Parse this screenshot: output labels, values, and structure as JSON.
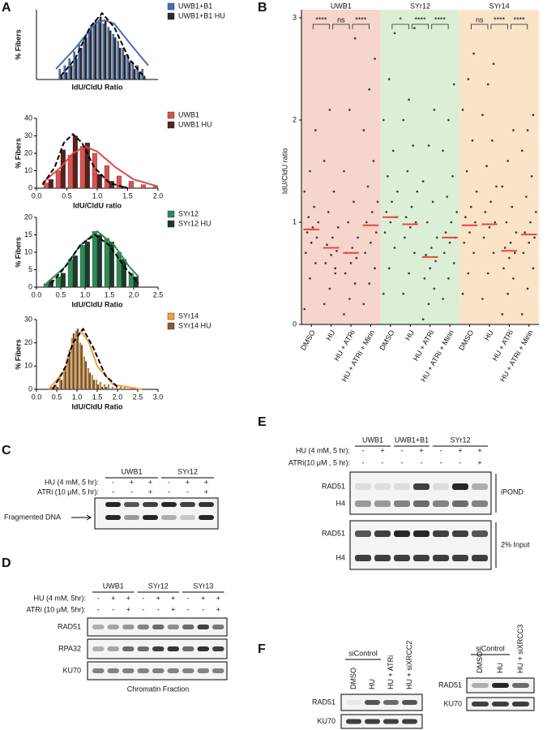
{
  "panel_labels": [
    "A",
    "B",
    "C",
    "D",
    "E",
    "F"
  ],
  "chart_data": [
    {
      "type": "bar",
      "xlabel": "IdU/CldU Ratio",
      "ylabel": "% Fibers",
      "xlim": [
        0,
        2.5
      ],
      "ylim": [
        0,
        20
      ],
      "x": [
        0.5,
        0.6,
        0.7,
        0.8,
        0.9,
        1.0,
        1.1,
        1.2,
        1.3,
        1.4,
        1.5,
        1.6,
        1.7,
        1.8,
        1.9,
        2.0,
        2.1,
        2.2
      ],
      "series": [
        {
          "name": "UWB1+B1",
          "color": "#4a6fb5",
          "values": [
            3,
            4,
            6,
            8,
            10,
            12,
            14,
            16,
            17,
            16,
            15,
            13,
            11,
            9,
            7,
            5,
            4,
            3
          ]
        },
        {
          "name": "UWB1+B1 HU",
          "color": "#2a2a2a",
          "values": [
            1,
            2,
            4,
            6,
            9,
            12,
            15,
            17,
            18,
            17,
            14,
            12,
            9,
            7,
            5,
            3,
            2,
            1
          ]
        }
      ],
      "fits": [
        {
          "color": "#4a6fb5",
          "dash": false,
          "x": [
            0.4,
            0.8,
            1.2,
            1.4,
            1.6,
            2.0,
            2.3
          ],
          "values": [
            3,
            9,
            16,
            17,
            16,
            9,
            4
          ]
        },
        {
          "color": "#000000",
          "dash": true,
          "x": [
            0.5,
            0.8,
            1.1,
            1.35,
            1.6,
            1.9,
            2.2
          ],
          "values": [
            1,
            6,
            15,
            19,
            15,
            6,
            1
          ]
        }
      ]
    },
    {
      "type": "bar",
      "xlabel": "IdU/CldU ratio",
      "ylabel": "% Fibers",
      "xlim": [
        0,
        2
      ],
      "ylim": [
        0,
        40
      ],
      "yticks": [
        0,
        10,
        20,
        30,
        40
      ],
      "xticks": [
        {
          "value": 0,
          "label": "0.0"
        },
        0.5,
        {
          "value": 1,
          "label": "1.0"
        },
        1.5,
        {
          "value": 2,
          "label": "2.0"
        }
      ],
      "x": [
        0.2,
        0.4,
        0.6,
        0.8,
        1.0,
        1.2,
        1.4,
        1.6,
        1.8,
        2.0
      ],
      "series": [
        {
          "name": "UWB1",
          "color": "#d9534f",
          "values": [
            3,
            10,
            19,
            24,
            20,
            13,
            7,
            4,
            2,
            1
          ]
        },
        {
          "name": "UWB1 HU",
          "color": "#5a1f1f",
          "values": [
            5,
            22,
            30,
            26,
            8,
            4,
            1,
            0,
            0,
            0
          ]
        }
      ],
      "fits": [
        {
          "color": "#e04a45",
          "dash": false,
          "x": [
            0.1,
            0.4,
            0.6,
            0.8,
            1.0,
            1.3,
            1.6,
            2.0
          ],
          "values": [
            3,
            12,
            20,
            24,
            21,
            12,
            5,
            1
          ]
        },
        {
          "color": "#000000",
          "dash": true,
          "x": [
            0.1,
            0.3,
            0.45,
            0.6,
            0.75,
            0.95,
            1.2,
            1.5
          ],
          "values": [
            2,
            12,
            26,
            31,
            26,
            12,
            3,
            0
          ]
        }
      ]
    },
    {
      "type": "bar",
      "xlabel": "IdU/CldU Ratio",
      "ylabel": "% Fibers",
      "xlim": [
        0,
        2.5
      ],
      "ylim": [
        0,
        20
      ],
      "yticks": [
        0,
        5,
        10,
        15,
        20
      ],
      "xticks": [
        {
          "value": 0,
          "label": "0.0"
        },
        0.5,
        {
          "value": 1,
          "label": "1.0"
        },
        1.5,
        {
          "value": 2,
          "label": "2.0"
        },
        2.5
      ],
      "x": [
        0.25,
        0.5,
        0.75,
        1.0,
        1.25,
        1.5,
        1.75,
        2.0
      ],
      "series": [
        {
          "name": "SYr12",
          "color": "#2e8b57",
          "values": [
            1,
            3,
            8,
            12,
            16,
            14,
            10,
            4
          ]
        },
        {
          "name": "SYr12 HU",
          "color": "#1a3d2a",
          "values": [
            2,
            4,
            9,
            13,
            15,
            13,
            8,
            3
          ]
        }
      ],
      "fits": [
        {
          "color": "#2e8b57",
          "dash": false,
          "x": [
            0.2,
            0.6,
            0.9,
            1.25,
            1.6,
            1.9,
            2.1
          ],
          "values": [
            1,
            6,
            12,
            16,
            12,
            6,
            3
          ]
        },
        {
          "color": "#000000",
          "dash": true,
          "x": [
            0.3,
            0.6,
            0.9,
            1.2,
            1.5,
            1.8,
            2.1
          ],
          "values": [
            1,
            6,
            12,
            15,
            12,
            6,
            1
          ]
        }
      ]
    },
    {
      "type": "bar",
      "xlabel": "IdU/CldU Ratio",
      "ylabel": "% Fibers",
      "xlim": [
        0,
        3
      ],
      "ylim": [
        0,
        30
      ],
      "yticks": [
        0,
        10,
        20,
        30
      ],
      "xticks": [
        {
          "value": 0,
          "label": "0.0"
        },
        0.5,
        {
          "value": 1,
          "label": "1.0"
        },
        1.5,
        {
          "value": 2,
          "label": "2.0"
        },
        2.5,
        {
          "value": 3,
          "label": "3.0"
        }
      ],
      "x": [
        0.4,
        0.5,
        0.6,
        0.7,
        0.8,
        0.9,
        1.0,
        1.1,
        1.2,
        1.3,
        1.4,
        1.5,
        1.6,
        1.7,
        1.8,
        1.9,
        2.0,
        2.1,
        2.2
      ],
      "series": [
        {
          "name": "SYr14",
          "color": "#f0a13a",
          "values": [
            1,
            2,
            5,
            9,
            15,
            22,
            25,
            20,
            14,
            9,
            6,
            4,
            3,
            2,
            2,
            1,
            1,
            1,
            1
          ]
        },
        {
          "name": "SYr14 HU",
          "color": "#8a5a2b",
          "values": [
            0,
            1,
            4,
            10,
            17,
            24,
            26,
            19,
            12,
            7,
            4,
            2,
            1,
            1,
            0,
            0,
            0,
            0,
            0
          ]
        }
      ],
      "fits": [
        {
          "color": "#f0a13a",
          "dash": false,
          "x": [
            0.3,
            0.7,
            0.9,
            1.1,
            1.3,
            1.5,
            1.9,
            2.6
          ],
          "values": [
            0,
            8,
            20,
            25,
            20,
            10,
            2,
            0
          ]
        },
        {
          "color": "#000000",
          "dash": true,
          "x": [
            0.4,
            0.7,
            0.9,
            1.15,
            1.4,
            1.7,
            2.0
          ],
          "values": [
            0,
            9,
            20,
            26,
            18,
            6,
            1
          ]
        }
      ]
    },
    {
      "type": "dot",
      "ylabel": "IdU/CldU ratio",
      "ylim": [
        0,
        3
      ],
      "yticks": [
        0,
        1,
        2,
        3
      ],
      "categories": [
        "DMSO",
        "HU",
        "HU + ATRi",
        "HU + ATRi + Mirin",
        "DMSO",
        "HU",
        "HU + ATRi",
        "HU + ATRi + Mirin",
        "DMSO",
        "HU",
        "HU + ATRi",
        "HU + ATRi + Mirin"
      ],
      "groups": [
        {
          "name": "UWB1",
          "color": "#f5d5cc"
        },
        {
          "name": "SYr12",
          "color": "#dcefd6"
        },
        {
          "name": "SYr14",
          "color": "#fbe3c8"
        }
      ],
      "significance": [
        "****",
        "ns",
        "****",
        "*",
        "****",
        "****",
        "ns",
        "****",
        "****"
      ],
      "point_color": "#333333",
      "median_color": "#e8463a",
      "medians": [
        0.93,
        0.75,
        0.7,
        0.97,
        1.05,
        0.98,
        0.66,
        0.85,
        0.97,
        0.98,
        0.72,
        0.88
      ],
      "points": [
        [
          0.15,
          0.45,
          0.6,
          0.7,
          0.8,
          0.85,
          0.9,
          0.95,
          1.0,
          1.05,
          1.15,
          1.3,
          1.5,
          1.9
        ],
        [
          0.2,
          0.35,
          0.5,
          0.6,
          0.68,
          0.72,
          0.78,
          0.85,
          0.95,
          1.1,
          1.3,
          1.6,
          2.1,
          0.55
        ],
        [
          0.1,
          0.25,
          0.4,
          0.5,
          0.6,
          0.65,
          0.7,
          0.75,
          0.85,
          1.0,
          1.2,
          1.5,
          2.1,
          2.8
        ],
        [
          0.2,
          0.4,
          0.55,
          0.7,
          0.8,
          0.9,
          1.0,
          1.1,
          1.2,
          1.35,
          1.6,
          1.9,
          2.3,
          2.6
        ],
        [
          0.3,
          0.55,
          0.75,
          0.9,
          1.0,
          1.05,
          1.1,
          1.2,
          1.3,
          1.45,
          1.7,
          2.0,
          2.4,
          2.85
        ],
        [
          0.3,
          0.5,
          0.7,
          0.85,
          0.95,
          1.0,
          1.05,
          1.15,
          1.3,
          1.5,
          1.75,
          2.0,
          2.2,
          2.9
        ],
        [
          0.05,
          0.2,
          0.35,
          0.45,
          0.55,
          0.62,
          0.68,
          0.75,
          0.85,
          1.0,
          1.2,
          1.4,
          1.75,
          2.1
        ],
        [
          0.25,
          0.45,
          0.6,
          0.7,
          0.8,
          0.85,
          0.9,
          1.0,
          1.1,
          1.25,
          1.45,
          1.7,
          2.0,
          2.35
        ],
        [
          0.3,
          0.5,
          0.7,
          0.8,
          0.9,
          1.0,
          1.05,
          1.15,
          1.3,
          1.5,
          1.8,
          2.1,
          2.4,
          2.65
        ],
        [
          0.25,
          0.5,
          0.7,
          0.85,
          0.95,
          1.0,
          1.1,
          1.2,
          1.35,
          1.55,
          1.8,
          2.05,
          2.35,
          2.55
        ],
        [
          0.1,
          0.3,
          0.45,
          0.55,
          0.65,
          0.7,
          0.75,
          0.8,
          0.9,
          1.0,
          1.15,
          1.35,
          1.6,
          1.9
        ],
        [
          0.1,
          0.35,
          0.55,
          0.7,
          0.8,
          0.85,
          0.9,
          1.0,
          1.1,
          1.25,
          1.45,
          1.7,
          1.9,
          2.05
        ]
      ]
    }
  ],
  "blot_c": {
    "groups": [
      "UWB1",
      "SYr12"
    ],
    "rows": [
      {
        "label": "HU (4 mM, 5 hr):",
        "signs": [
          "-",
          "+",
          "+",
          "-",
          "+",
          "+"
        ]
      },
      {
        "label": "ATRi (10 μM, 5 hr):",
        "signs": [
          "-",
          "-",
          "+",
          "-",
          "-",
          "+"
        ]
      }
    ],
    "band_label": "Fragmented DNA"
  },
  "blot_d": {
    "groups": [
      "UWB1",
      "SYr12",
      "SYr13"
    ],
    "rows": [
      {
        "label": "HU (4 mM, 5hr):",
        "signs": [
          "-",
          "+",
          "+",
          "-",
          "+",
          "+",
          "-",
          "+",
          "+"
        ]
      },
      {
        "label": "ATRi (10 μM, 5hr):",
        "signs": [
          "-",
          "-",
          "+",
          "-",
          "-",
          "+",
          "-",
          "-",
          "+"
        ]
      }
    ],
    "proteins": [
      "RAD51",
      "RPA32",
      "KU70"
    ],
    "footer": "Chromatin Fraction"
  },
  "blot_e": {
    "groups": [
      "UWB1",
      "UWB1+B1",
      "SYr12"
    ],
    "rows": [
      {
        "label": "HU (4 mM, 5 hr):",
        "signs": [
          "-",
          "+",
          "-",
          "+",
          "-",
          "+",
          "+"
        ]
      },
      {
        "label": "ATRi(10 μM , 5 hr):",
        "signs": [
          "-",
          "-",
          "-",
          "-",
          "-",
          "-",
          "+"
        ]
      }
    ],
    "proteins": [
      "RAD51",
      "H4",
      "RAD51",
      "H4"
    ],
    "sections": [
      "iPOND",
      "2% Input"
    ]
  },
  "blot_f": {
    "left": {
      "header": "siControl",
      "lanes": [
        "DMSO",
        "HU",
        "HU + ATRi",
        "HU + siXRCC2"
      ],
      "proteins": [
        "RAD51",
        "KU70"
      ]
    },
    "right": {
      "header": "siControl",
      "lanes": [
        "DMSO",
        "HU",
        "HU + siXRCC3"
      ],
      "proteins": [
        "RAD51",
        "KU70"
      ]
    }
  }
}
